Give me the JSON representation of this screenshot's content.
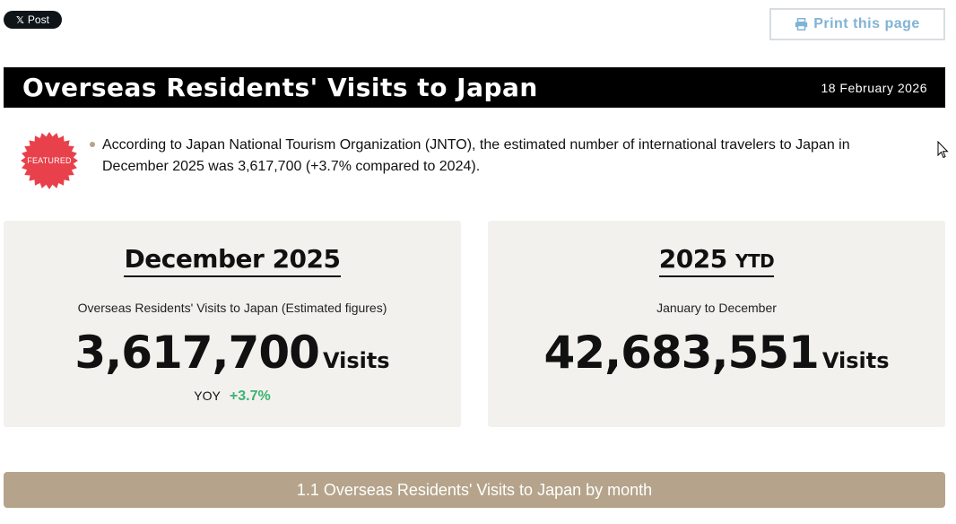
{
  "share": {
    "label": "Post",
    "icon": "x-logo-icon"
  },
  "print": {
    "label": "Print this page",
    "icon": "printer-icon"
  },
  "header": {
    "title": "Overseas Residents' Visits to Japan",
    "date": "18 February 2026"
  },
  "featured": {
    "label": "FEATURED",
    "color": "#e8414b"
  },
  "notice": {
    "text": "According to Japan National Tourism Organization (JNTO), the estimated number of international travelers to Japan in December 2025 was 3,617,700 (+3.7% compared to 2024)."
  },
  "cards": {
    "monthly": {
      "heading": "December 2025",
      "subtitle": "Overseas Residents' Visits to Japan (Estimated figures)",
      "value": "3,617,700",
      "unit": "Visits",
      "yoy_label": "YOY",
      "yoy_value": "+3.7%"
    },
    "ytd": {
      "heading": "2025",
      "heading_suffix": "YTD",
      "subtitle": "January to December",
      "value": "42,683,551",
      "unit": "Visits"
    }
  },
  "section": {
    "label": "1.1 Overseas Residents' Visits to Japan by month"
  },
  "colors": {
    "accent": "#b5a48b",
    "positive": "#3cb371",
    "link": "#7fb3d5"
  }
}
